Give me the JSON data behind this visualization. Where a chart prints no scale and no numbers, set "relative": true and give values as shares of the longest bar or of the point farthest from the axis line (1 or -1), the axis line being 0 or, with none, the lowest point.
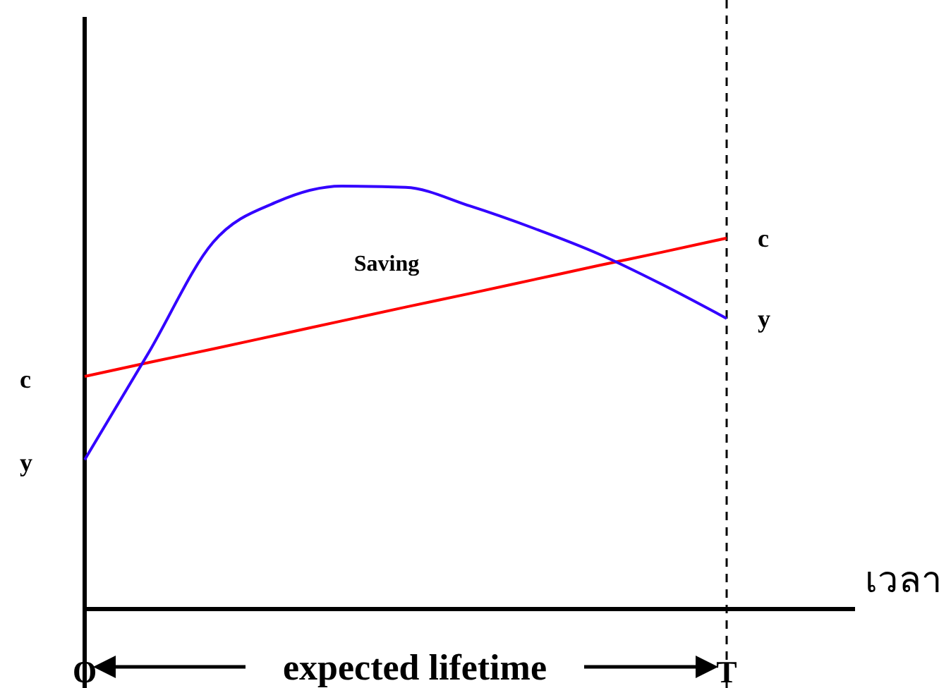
{
  "chart_data": {
    "type": "line",
    "relative": true,
    "xlabel": "เวลา",
    "categories": [
      "O",
      null,
      null,
      null,
      null,
      null,
      null,
      null,
      null,
      null,
      "T"
    ],
    "series": [
      {
        "name": "c",
        "color": "#ff0000",
        "values": [
          0.55,
          0.583,
          0.615,
          0.648,
          0.681,
          0.714,
          0.746,
          0.779,
          0.812,
          0.844,
          0.877
        ]
      },
      {
        "name": "y",
        "color": "#3300ff",
        "values": [
          0.353,
          0.607,
          0.867,
          0.963,
          1,
          0.997,
          0.953,
          0.9,
          0.84,
          0.767,
          0.687
        ]
      }
    ],
    "ref_lines": [
      {
        "axis": "x",
        "value": "T",
        "color": "#000000",
        "line_style": "dashed"
      }
    ],
    "annotations": [
      "Saving",
      "expected lifetime"
    ],
    "grid": false,
    "marker": "none",
    "line_style": "solid"
  }
}
